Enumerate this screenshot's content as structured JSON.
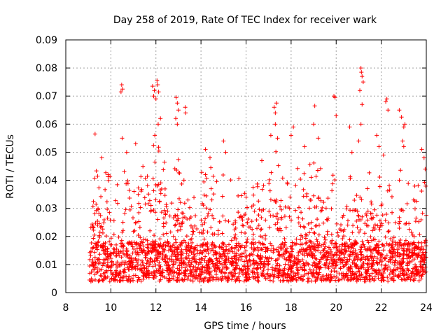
{
  "chart_data": {
    "type": "scatter",
    "title": "Day 258 of 2019, Rate Of TEC Index for receiver wark",
    "xlabel": "GPS time / hours",
    "ylabel": "ROTI / TECUs",
    "xlim": [
      8,
      24
    ],
    "ylim": [
      0,
      0.09
    ],
    "x_ticks": [
      "8",
      "10",
      "12",
      "14",
      "16",
      "18",
      "20",
      "22",
      "24"
    ],
    "y_ticks": [
      "0",
      "0.01",
      "0.02",
      "0.03",
      "0.04",
      "0.05",
      "0.06",
      "0.07",
      "0.08",
      "0.09"
    ],
    "grid": true,
    "marker": "plus",
    "color": "#ff0000",
    "series": [
      {
        "name": "ROTI",
        "points": [
          [
            9.3,
            0.0565
          ],
          [
            10.45,
            0.0715
          ],
          [
            10.48,
            0.074
          ],
          [
            10.52,
            0.0725
          ],
          [
            10.5,
            0.055
          ],
          [
            11.85,
            0.0735
          ],
          [
            11.9,
            0.07
          ],
          [
            11.93,
            0.072
          ],
          [
            12.05,
            0.0755
          ],
          [
            12.08,
            0.074
          ],
          [
            12.12,
            0.0715
          ],
          [
            12.0,
            0.069
          ],
          [
            12.1,
            0.06
          ],
          [
            12.2,
            0.062
          ],
          [
            11.95,
            0.056
          ],
          [
            12.9,
            0.0695
          ],
          [
            12.95,
            0.0675
          ],
          [
            13.0,
            0.065
          ],
          [
            12.88,
            0.062
          ],
          [
            13.3,
            0.066
          ],
          [
            13.32,
            0.064
          ],
          [
            12.95,
            0.06
          ],
          [
            14.2,
            0.051
          ],
          [
            14.4,
            0.048
          ],
          [
            15.0,
            0.054
          ],
          [
            15.1,
            0.05
          ],
          [
            17.25,
            0.066
          ],
          [
            17.3,
            0.064
          ],
          [
            17.35,
            0.0675
          ],
          [
            17.3,
            0.06
          ],
          [
            17.1,
            0.056
          ],
          [
            17.4,
            0.055
          ],
          [
            16.7,
            0.047
          ],
          [
            18.0,
            0.056
          ],
          [
            18.1,
            0.059
          ],
          [
            19.0,
            0.06
          ],
          [
            19.05,
            0.0665
          ],
          [
            19.2,
            0.055
          ],
          [
            18.6,
            0.052
          ],
          [
            19.9,
            0.07
          ],
          [
            19.95,
            0.0695
          ],
          [
            20.0,
            0.063
          ],
          [
            20.6,
            0.059
          ],
          [
            20.7,
            0.05
          ],
          [
            21.1,
            0.08
          ],
          [
            21.12,
            0.0785
          ],
          [
            21.15,
            0.077
          ],
          [
            21.2,
            0.075
          ],
          [
            21.05,
            0.072
          ],
          [
            21.15,
            0.067
          ],
          [
            21.1,
            0.06
          ],
          [
            21.0,
            0.054
          ],
          [
            21.8,
            0.056
          ],
          [
            21.9,
            0.052
          ],
          [
            22.2,
            0.068
          ],
          [
            22.25,
            0.069
          ],
          [
            22.3,
            0.065
          ],
          [
            22.1,
            0.049
          ],
          [
            22.8,
            0.065
          ],
          [
            22.9,
            0.0625
          ],
          [
            23.0,
            0.059
          ],
          [
            23.05,
            0.06
          ],
          [
            22.95,
            0.054
          ],
          [
            23.0,
            0.052
          ],
          [
            23.8,
            0.051
          ],
          [
            23.9,
            0.048
          ],
          [
            23.95,
            0.044
          ],
          [
            11.1,
            0.053
          ],
          [
            10.7,
            0.05
          ],
          [
            9.6,
            0.048
          ]
        ],
        "dense_band": {
          "description": "dense cloud of ROTI samples spanning the observing period",
          "x_range": [
            9.05,
            24.0
          ],
          "baseline_range": [
            0.004,
            0.018
          ],
          "upper_envelope": [
            [
              9.05,
              0.032
            ],
            [
              9.3,
              0.045
            ],
            [
              9.6,
              0.04
            ],
            [
              9.9,
              0.045
            ],
            [
              10.2,
              0.038
            ],
            [
              10.5,
              0.046
            ],
            [
              10.8,
              0.04
            ],
            [
              11.2,
              0.044
            ],
            [
              11.6,
              0.048
            ],
            [
              12.0,
              0.055
            ],
            [
              12.3,
              0.047
            ],
            [
              12.7,
              0.046
            ],
            [
              13.0,
              0.05
            ],
            [
              13.4,
              0.045
            ],
            [
              13.8,
              0.041
            ],
            [
              14.2,
              0.046
            ],
            [
              14.6,
              0.044
            ],
            [
              15.0,
              0.047
            ],
            [
              15.4,
              0.04
            ],
            [
              15.8,
              0.041
            ],
            [
              16.2,
              0.04
            ],
            [
              16.6,
              0.044
            ],
            [
              17.0,
              0.046
            ],
            [
              17.3,
              0.052
            ],
            [
              17.7,
              0.046
            ],
            [
              18.1,
              0.045
            ],
            [
              18.5,
              0.045
            ],
            [
              18.9,
              0.047
            ],
            [
              19.3,
              0.045
            ],
            [
              19.7,
              0.044
            ],
            [
              20.1,
              0.04
            ],
            [
              20.5,
              0.043
            ],
            [
              20.9,
              0.042
            ],
            [
              21.2,
              0.047
            ],
            [
              21.6,
              0.041
            ],
            [
              22.0,
              0.042
            ],
            [
              22.4,
              0.04
            ],
            [
              22.8,
              0.045
            ],
            [
              23.2,
              0.042
            ],
            [
              23.6,
              0.038
            ],
            [
              24.0,
              0.04
            ]
          ]
        }
      }
    ]
  }
}
